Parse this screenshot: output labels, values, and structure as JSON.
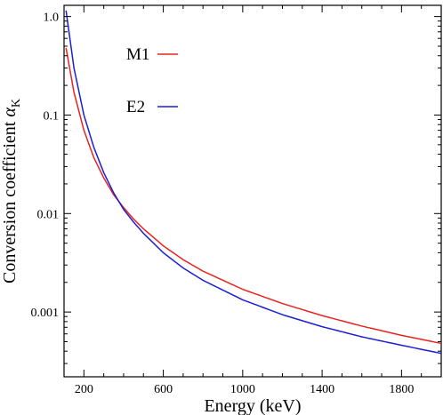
{
  "chart_data": {
    "type": "line",
    "xlabel": "Energy (keV)",
    "ylabel_main": "Conversion coefficient ",
    "ylabel_symbol": "α",
    "ylabel_subscript": "K",
    "xlim": [
      100,
      2000
    ],
    "ylim": [
      0.00022,
      1.3
    ],
    "yscale": "log",
    "x_ticks": [
      200,
      600,
      1000,
      1400,
      1800
    ],
    "x_tick_labels": [
      "200",
      "600",
      "1000",
      "1400",
      "1800"
    ],
    "y_ticks": [
      1.0,
      0.1,
      0.01,
      0.001
    ],
    "y_tick_labels": [
      "1.0",
      "0.1",
      "0.01",
      "0.001"
    ],
    "grid": false,
    "legend_position": "top-left",
    "series": [
      {
        "name": "M1",
        "color": "#e8231f",
        "x": [
          110,
          150,
          200,
          250,
          300,
          350,
          400,
          450,
          500,
          600,
          700,
          800,
          1000,
          1200,
          1400,
          1600,
          1800,
          2000
        ],
        "y": [
          0.48,
          0.17,
          0.07,
          0.037,
          0.023,
          0.0155,
          0.0115,
          0.0088,
          0.007,
          0.0047,
          0.0034,
          0.0026,
          0.0017,
          0.00122,
          0.00092,
          0.00072,
          0.00058,
          0.00048
        ]
      },
      {
        "name": "E2",
        "color": "#1a1fd6",
        "x": [
          110,
          150,
          200,
          250,
          300,
          350,
          400,
          450,
          500,
          600,
          700,
          800,
          1000,
          1200,
          1400,
          1600,
          1800,
          2000
        ],
        "y": [
          1.15,
          0.3,
          0.1,
          0.047,
          0.026,
          0.0162,
          0.011,
          0.0082,
          0.0063,
          0.004,
          0.0028,
          0.0021,
          0.00133,
          0.00094,
          0.00071,
          0.00056,
          0.00046,
          0.00038
        ]
      }
    ]
  }
}
